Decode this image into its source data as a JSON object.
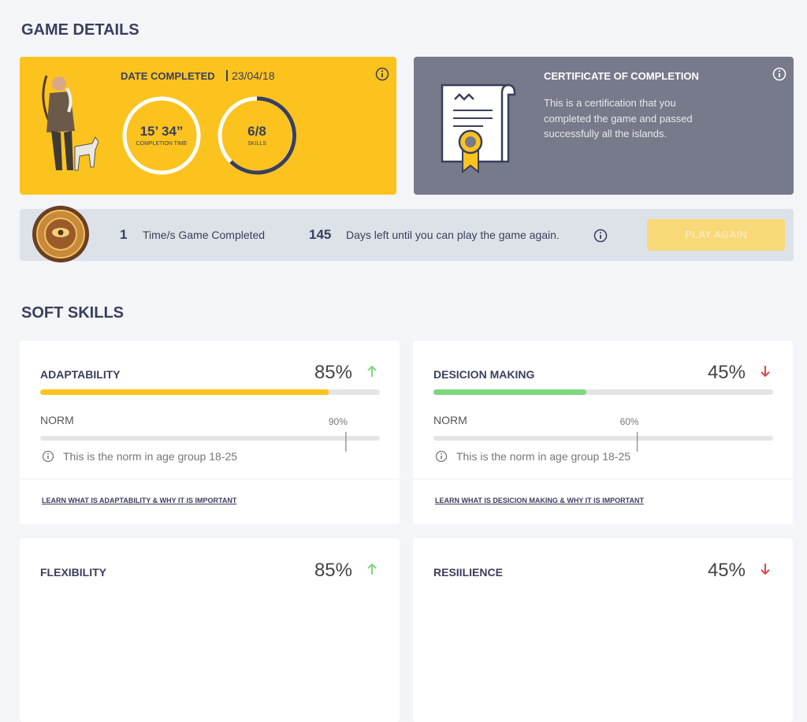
{
  "game_details": {
    "title": "GAME DETAILS",
    "completion": {
      "date_label": "DATE COMPLETED",
      "date": "23/04/18",
      "time": "15’ 34”",
      "time_label": "COMPLETION TIME",
      "skills": "6/8",
      "skills_label": "SKILLS"
    },
    "certificate": {
      "title": "CERTIFICATE OF COMPLETION",
      "text": "This is a certification that you completed the game and passed successfully all the islands."
    },
    "summary": {
      "times": "1",
      "times_label": "Time/s Game Completed",
      "days": "145",
      "days_label": "Days left until you can play the game again.",
      "button": "PLAY AGAIN"
    }
  },
  "soft_skills": {
    "title": "SOFT SKILLS",
    "items": [
      {
        "name": "ADAPTABILITY",
        "percent": {
          "value": 85,
          "label": "85%"
        },
        "trend": "up",
        "color": "#fcc31e",
        "norm_label": "NORM",
        "norm": {
          "value": 90,
          "label": "90%"
        },
        "norm_note": "This is the norm in age group 18-25",
        "link": "LEARN WHAT IS ADAPTABILITY & WHY IT IS IMPORTANT"
      },
      {
        "name": "DESICION MAKING",
        "percent": {
          "value": 45,
          "label": "45%"
        },
        "trend": "down",
        "color": "#7ed67e",
        "norm_label": "NORM",
        "norm": {
          "value": 60,
          "label": "60%"
        },
        "norm_note": "This is the norm in age group 18-25",
        "link": "LEARN WHAT IS DESICION MAKING & WHY IT IS IMPORTANT"
      },
      {
        "name": "FLEXIBILITY",
        "percent": "85%",
        "trend": "up"
      },
      {
        "name": "RESIILIENCE",
        "percent": "45%",
        "trend": "down"
      }
    ]
  }
}
